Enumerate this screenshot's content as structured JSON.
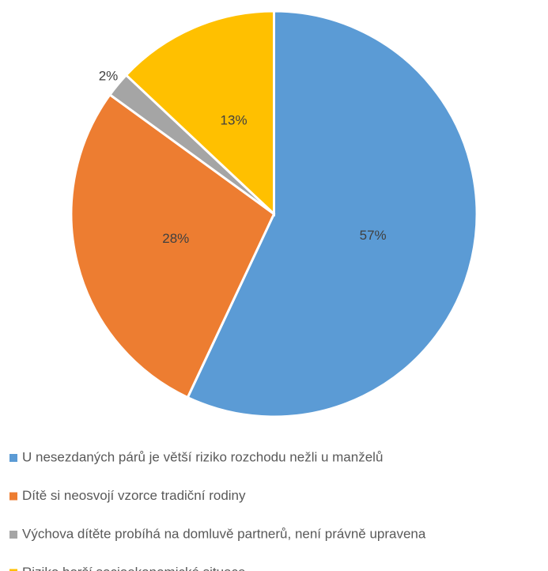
{
  "chart_data": {
    "type": "pie",
    "categories": [
      "U nesezdaných párů je větší riziko rozchodu nežli u manželů",
      "Dítě si neosvojí vzorce tradiční rodiny",
      "Výchova dítěte probíhá na domluvě partnerů, není právně upravena",
      "Riziko horší socioekonomické situace"
    ],
    "values": [
      57,
      28,
      2,
      13
    ],
    "value_labels": [
      "57%",
      "28%",
      "2%",
      "13%"
    ],
    "colors": [
      "#5b9bd5",
      "#ed7d31",
      "#a5a5a5",
      "#ffc000"
    ],
    "legend": "bottom"
  }
}
